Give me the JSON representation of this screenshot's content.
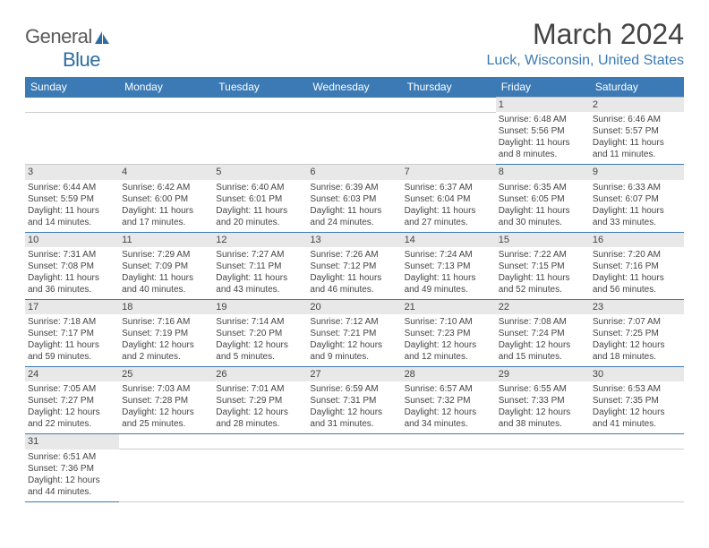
{
  "logo": {
    "text1": "General",
    "text2": "Blue"
  },
  "title": "March 2024",
  "location": "Luck, Wisconsin, United States",
  "colors": {
    "header_bg": "#3b7ab5",
    "header_text": "#ffffff",
    "daynum_bg": "#e8e8e8",
    "border": "#3b7ab5",
    "location_color": "#3b7ab5"
  },
  "weekdays": [
    "Sunday",
    "Monday",
    "Tuesday",
    "Wednesday",
    "Thursday",
    "Friday",
    "Saturday"
  ],
  "weeks": [
    [
      null,
      null,
      null,
      null,
      null,
      {
        "n": "1",
        "sr": "Sunrise: 6:48 AM",
        "ss": "Sunset: 5:56 PM",
        "dl": "Daylight: 11 hours and 8 minutes."
      },
      {
        "n": "2",
        "sr": "Sunrise: 6:46 AM",
        "ss": "Sunset: 5:57 PM",
        "dl": "Daylight: 11 hours and 11 minutes."
      }
    ],
    [
      {
        "n": "3",
        "sr": "Sunrise: 6:44 AM",
        "ss": "Sunset: 5:59 PM",
        "dl": "Daylight: 11 hours and 14 minutes."
      },
      {
        "n": "4",
        "sr": "Sunrise: 6:42 AM",
        "ss": "Sunset: 6:00 PM",
        "dl": "Daylight: 11 hours and 17 minutes."
      },
      {
        "n": "5",
        "sr": "Sunrise: 6:40 AM",
        "ss": "Sunset: 6:01 PM",
        "dl": "Daylight: 11 hours and 20 minutes."
      },
      {
        "n": "6",
        "sr": "Sunrise: 6:39 AM",
        "ss": "Sunset: 6:03 PM",
        "dl": "Daylight: 11 hours and 24 minutes."
      },
      {
        "n": "7",
        "sr": "Sunrise: 6:37 AM",
        "ss": "Sunset: 6:04 PM",
        "dl": "Daylight: 11 hours and 27 minutes."
      },
      {
        "n": "8",
        "sr": "Sunrise: 6:35 AM",
        "ss": "Sunset: 6:05 PM",
        "dl": "Daylight: 11 hours and 30 minutes."
      },
      {
        "n": "9",
        "sr": "Sunrise: 6:33 AM",
        "ss": "Sunset: 6:07 PM",
        "dl": "Daylight: 11 hours and 33 minutes."
      }
    ],
    [
      {
        "n": "10",
        "sr": "Sunrise: 7:31 AM",
        "ss": "Sunset: 7:08 PM",
        "dl": "Daylight: 11 hours and 36 minutes."
      },
      {
        "n": "11",
        "sr": "Sunrise: 7:29 AM",
        "ss": "Sunset: 7:09 PM",
        "dl": "Daylight: 11 hours and 40 minutes."
      },
      {
        "n": "12",
        "sr": "Sunrise: 7:27 AM",
        "ss": "Sunset: 7:11 PM",
        "dl": "Daylight: 11 hours and 43 minutes."
      },
      {
        "n": "13",
        "sr": "Sunrise: 7:26 AM",
        "ss": "Sunset: 7:12 PM",
        "dl": "Daylight: 11 hours and 46 minutes."
      },
      {
        "n": "14",
        "sr": "Sunrise: 7:24 AM",
        "ss": "Sunset: 7:13 PM",
        "dl": "Daylight: 11 hours and 49 minutes."
      },
      {
        "n": "15",
        "sr": "Sunrise: 7:22 AM",
        "ss": "Sunset: 7:15 PM",
        "dl": "Daylight: 11 hours and 52 minutes."
      },
      {
        "n": "16",
        "sr": "Sunrise: 7:20 AM",
        "ss": "Sunset: 7:16 PM",
        "dl": "Daylight: 11 hours and 56 minutes."
      }
    ],
    [
      {
        "n": "17",
        "sr": "Sunrise: 7:18 AM",
        "ss": "Sunset: 7:17 PM",
        "dl": "Daylight: 11 hours and 59 minutes."
      },
      {
        "n": "18",
        "sr": "Sunrise: 7:16 AM",
        "ss": "Sunset: 7:19 PM",
        "dl": "Daylight: 12 hours and 2 minutes."
      },
      {
        "n": "19",
        "sr": "Sunrise: 7:14 AM",
        "ss": "Sunset: 7:20 PM",
        "dl": "Daylight: 12 hours and 5 minutes."
      },
      {
        "n": "20",
        "sr": "Sunrise: 7:12 AM",
        "ss": "Sunset: 7:21 PM",
        "dl": "Daylight: 12 hours and 9 minutes."
      },
      {
        "n": "21",
        "sr": "Sunrise: 7:10 AM",
        "ss": "Sunset: 7:23 PM",
        "dl": "Daylight: 12 hours and 12 minutes."
      },
      {
        "n": "22",
        "sr": "Sunrise: 7:08 AM",
        "ss": "Sunset: 7:24 PM",
        "dl": "Daylight: 12 hours and 15 minutes."
      },
      {
        "n": "23",
        "sr": "Sunrise: 7:07 AM",
        "ss": "Sunset: 7:25 PM",
        "dl": "Daylight: 12 hours and 18 minutes."
      }
    ],
    [
      {
        "n": "24",
        "sr": "Sunrise: 7:05 AM",
        "ss": "Sunset: 7:27 PM",
        "dl": "Daylight: 12 hours and 22 minutes."
      },
      {
        "n": "25",
        "sr": "Sunrise: 7:03 AM",
        "ss": "Sunset: 7:28 PM",
        "dl": "Daylight: 12 hours and 25 minutes."
      },
      {
        "n": "26",
        "sr": "Sunrise: 7:01 AM",
        "ss": "Sunset: 7:29 PM",
        "dl": "Daylight: 12 hours and 28 minutes."
      },
      {
        "n": "27",
        "sr": "Sunrise: 6:59 AM",
        "ss": "Sunset: 7:31 PM",
        "dl": "Daylight: 12 hours and 31 minutes."
      },
      {
        "n": "28",
        "sr": "Sunrise: 6:57 AM",
        "ss": "Sunset: 7:32 PM",
        "dl": "Daylight: 12 hours and 34 minutes."
      },
      {
        "n": "29",
        "sr": "Sunrise: 6:55 AM",
        "ss": "Sunset: 7:33 PM",
        "dl": "Daylight: 12 hours and 38 minutes."
      },
      {
        "n": "30",
        "sr": "Sunrise: 6:53 AM",
        "ss": "Sunset: 7:35 PM",
        "dl": "Daylight: 12 hours and 41 minutes."
      }
    ],
    [
      {
        "n": "31",
        "sr": "Sunrise: 6:51 AM",
        "ss": "Sunset: 7:36 PM",
        "dl": "Daylight: 12 hours and 44 minutes."
      },
      null,
      null,
      null,
      null,
      null,
      null
    ]
  ]
}
